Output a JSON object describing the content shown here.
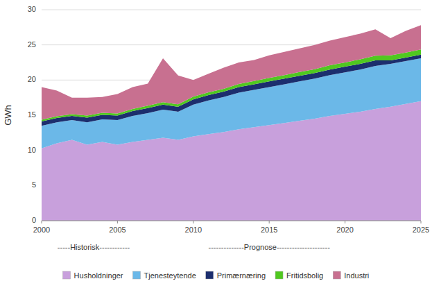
{
  "chart_data": {
    "type": "area",
    "stacked": true,
    "x": [
      2000,
      2001,
      2002,
      2003,
      2004,
      2005,
      2006,
      2007,
      2008,
      2009,
      2010,
      2011,
      2012,
      2013,
      2014,
      2015,
      2016,
      2017,
      2018,
      2019,
      2020,
      2021,
      2022,
      2023,
      2024,
      2025
    ],
    "series": [
      {
        "name": "Husholdninger",
        "color": "#C8A0DC",
        "values": [
          10.3,
          11.0,
          11.5,
          10.8,
          11.2,
          10.8,
          11.2,
          11.5,
          11.8,
          11.5,
          12.0,
          12.3,
          12.6,
          13.0,
          13.3,
          13.6,
          13.9,
          14.2,
          14.5,
          14.9,
          15.2,
          15.5,
          15.9,
          16.2,
          16.6,
          17.0
        ]
      },
      {
        "name": "Tjenesteytende",
        "color": "#6BB8E8",
        "values": [
          3.2,
          3.0,
          2.8,
          3.2,
          3.2,
          3.5,
          3.7,
          3.8,
          4.0,
          4.0,
          4.5,
          4.8,
          5.0,
          5.2,
          5.3,
          5.4,
          5.5,
          5.6,
          5.7,
          5.8,
          5.9,
          6.0,
          6.1,
          6.1,
          6.1,
          6.1
        ]
      },
      {
        "name": "Primærnæring",
        "color": "#1C2E6E",
        "values": [
          0.6,
          0.6,
          0.6,
          0.65,
          0.65,
          0.65,
          0.7,
          0.7,
          0.7,
          0.7,
          0.75,
          0.75,
          0.75,
          0.8,
          0.8,
          0.8,
          0.8,
          0.8,
          0.8,
          0.8,
          0.8,
          0.8,
          0.8,
          0.5,
          0.5,
          0.5
        ]
      },
      {
        "name": "Fritidsbolig",
        "color": "#50C820",
        "values": [
          0.25,
          0.25,
          0.25,
          0.3,
          0.3,
          0.3,
          0.3,
          0.35,
          0.35,
          0.35,
          0.4,
          0.4,
          0.4,
          0.45,
          0.45,
          0.5,
          0.5,
          0.55,
          0.55,
          0.6,
          0.6,
          0.65,
          0.65,
          0.7,
          0.7,
          0.75
        ]
      },
      {
        "name": "Industri",
        "color": "#C87090",
        "values": [
          4.65,
          3.65,
          2.35,
          2.55,
          2.23,
          2.75,
          3.1,
          3.15,
          6.25,
          4.1,
          2.35,
          2.65,
          3.0,
          3.05,
          3.0,
          3.2,
          3.3,
          3.35,
          3.45,
          3.5,
          3.6,
          3.65,
          3.75,
          2.45,
          3.1,
          3.45
        ]
      }
    ],
    "xlim": [
      2000,
      2025
    ],
    "ylim": [
      0,
      30
    ],
    "xticks": [
      2000,
      2005,
      2010,
      2015,
      2020,
      2025
    ],
    "yticks": [
      0,
      5,
      10,
      15,
      20,
      25,
      30
    ],
    "ylabel": "GWh",
    "annotations": [
      "-----Historisk------------ ",
      "--------------Prognose---------------------"
    ],
    "grid": true,
    "legend": "bottom"
  }
}
